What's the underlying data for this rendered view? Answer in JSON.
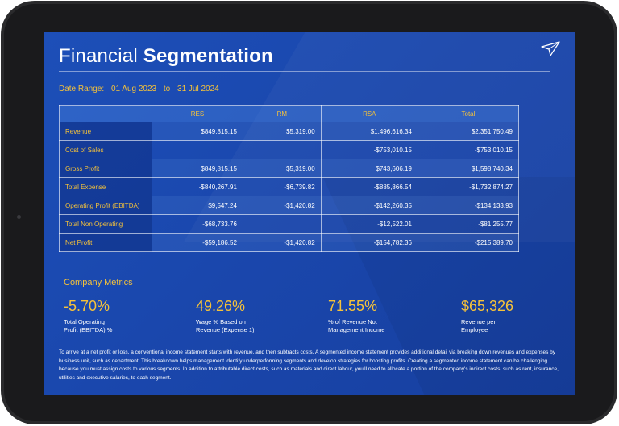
{
  "title": {
    "light": "Financial",
    "bold": "Segmentation"
  },
  "date_range": {
    "label": "Date Range:",
    "from": "01 Aug 2023",
    "sep": "to",
    "to": "31 Jul 2024"
  },
  "table": {
    "headers": [
      "",
      "RES",
      "RM",
      "RSA",
      "Total"
    ],
    "rows": [
      {
        "label": "Revenue",
        "values": [
          "$849,815.15",
          "$5,319.00",
          "$1,496,616.34",
          "$2,351,750.49"
        ]
      },
      {
        "label": "Cost of Sales",
        "values": [
          "",
          "",
          "-$753,010.15",
          "-$753,010.15"
        ]
      },
      {
        "label": "Gross Profit",
        "values": [
          "$849,815.15",
          "$5,319.00",
          "$743,606.19",
          "$1,598,740.34"
        ]
      },
      {
        "label": "Total Expense",
        "values": [
          "-$840,267.91",
          "-$6,739.82",
          "-$885,866.54",
          "-$1,732,874.27"
        ]
      },
      {
        "label": "Operating Profit (EBITDA)",
        "values": [
          "$9,547.24",
          "-$1,420.82",
          "-$142,260.35",
          "-$134,133.93"
        ]
      },
      {
        "label": "Total Non Operating",
        "values": [
          "-$68,733.76",
          "",
          "-$12,522.01",
          "-$81,255.77"
        ]
      },
      {
        "label": "Net Profit",
        "values": [
          "-$59,186.52",
          "-$1,420.82",
          "-$154,782.36",
          "-$215,389.70"
        ]
      }
    ]
  },
  "metrics": {
    "title": "Company Metrics",
    "items": [
      {
        "value": "-5.70%",
        "label1": "Total Operating",
        "label2": "Profit (EBITDA) %"
      },
      {
        "value": "49.26%",
        "label1": "Wage % Based on",
        "label2": "Revenue (Expense 1)"
      },
      {
        "value": "71.55%",
        "label1": "% of Revenue Not",
        "label2": "Management Income"
      },
      {
        "value": "$65,326",
        "label1": "Revenue per",
        "label2": "Employee"
      }
    ]
  },
  "description": "To arrive at a net profit or loss, a conventional income statement starts with revenue, and then subtracts costs. A segmented income statement provides additional detail via breaking down revenues and expenses by business unit, such as department. This breakdown helps management identify underperforming segments and develop strategies for boosting profits. Creating a segmented income statement can be challenging because you must assign costs to various segments. In addition to attributable direct costs, such as materials and direct labour, you'll need to allocate a portion of the company's indirect costs, such as rent, insurance, utilities and executive salaries, to each segment.",
  "icons": {
    "logo": "paper-plane-logo-icon"
  },
  "colors": {
    "accent": "#f5c23a",
    "background": "#1d4fb8",
    "text": "#ffffff"
  }
}
